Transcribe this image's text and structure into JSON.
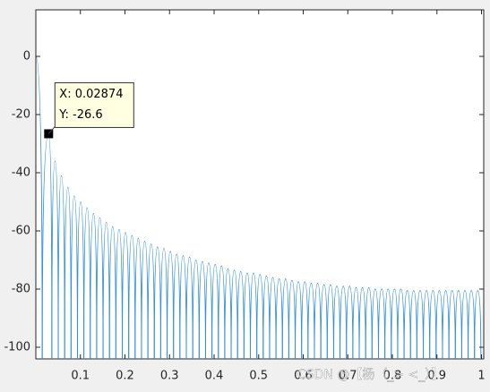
{
  "chart_data": {
    "type": "lobes",
    "x": [
      0,
      0.02874,
      0.0431,
      0.0575,
      0.0719,
      0.0862,
      0.1006,
      0.115,
      0.1293,
      0.1437,
      0.1581,
      0.1724,
      0.1868,
      0.2012,
      0.2156,
      0.2299,
      0.2443,
      0.2587,
      0.273,
      0.2874,
      0.3018,
      0.3161,
      0.3305,
      0.3449,
      0.3593,
      0.3736,
      0.388,
      0.4024,
      0.4167,
      0.4311,
      0.4455,
      0.4598,
      0.4742,
      0.4886,
      0.503,
      0.5173,
      0.5317,
      0.5461,
      0.5604,
      0.5748,
      0.5892,
      0.6035,
      0.6179,
      0.6323,
      0.6467,
      0.661,
      0.6754,
      0.6898,
      0.7041,
      0.7185,
      0.7329,
      0.7472,
      0.7616,
      0.776,
      0.7904,
      0.8047,
      0.8191,
      0.8335,
      0.8478,
      0.8622,
      0.8766,
      0.891,
      0.9053,
      0.9197,
      0.9341,
      0.9484,
      0.9628,
      0.9772,
      0.9915
    ],
    "series": [
      {
        "color": "#3a8fd0",
        "values": [
          0,
          -26.6,
          -36,
          -41,
          -45,
          -48,
          -50,
          -52,
          -54,
          -55.5,
          -57,
          -58.5,
          -59.5,
          -60.5,
          -61.5,
          -62.5,
          -63.5,
          -64.5,
          -65.5,
          -66,
          -67,
          -68,
          -68.5,
          -69,
          -70,
          -70.5,
          -71,
          -71.5,
          -72,
          -73,
          -73.5,
          -74,
          -74.5,
          -74.5,
          -75,
          -75.5,
          -76,
          -76.5,
          -76.5,
          -77,
          -77.5,
          -77.5,
          -78,
          -78,
          -78.5,
          -78.5,
          -79,
          -79,
          -79,
          -79.5,
          -79.5,
          -79.5,
          -80,
          -80,
          -80,
          -80,
          -80,
          -80.5,
          -80.5,
          -80.5,
          -80.5,
          -80.5,
          -80.5,
          -80.5,
          -80.5,
          -80.5,
          -80.5,
          -80.5,
          -80.5
        ]
      }
    ],
    "xlim": [
      0,
      1.005
    ],
    "ylim": [
      -104,
      16
    ],
    "xticks": [
      0.1,
      0.2,
      0.3,
      0.4,
      0.5,
      0.6,
      0.7,
      0.8,
      0.9,
      1
    ],
    "yticks": [
      0,
      -20,
      -40,
      -60,
      -80,
      -100
    ],
    "datatip": {
      "index": 1,
      "x_text": "X: 0.02874",
      "y_text": "Y: -26.6"
    },
    "watermark": "CSDN @【杨（_> <_）】"
  }
}
